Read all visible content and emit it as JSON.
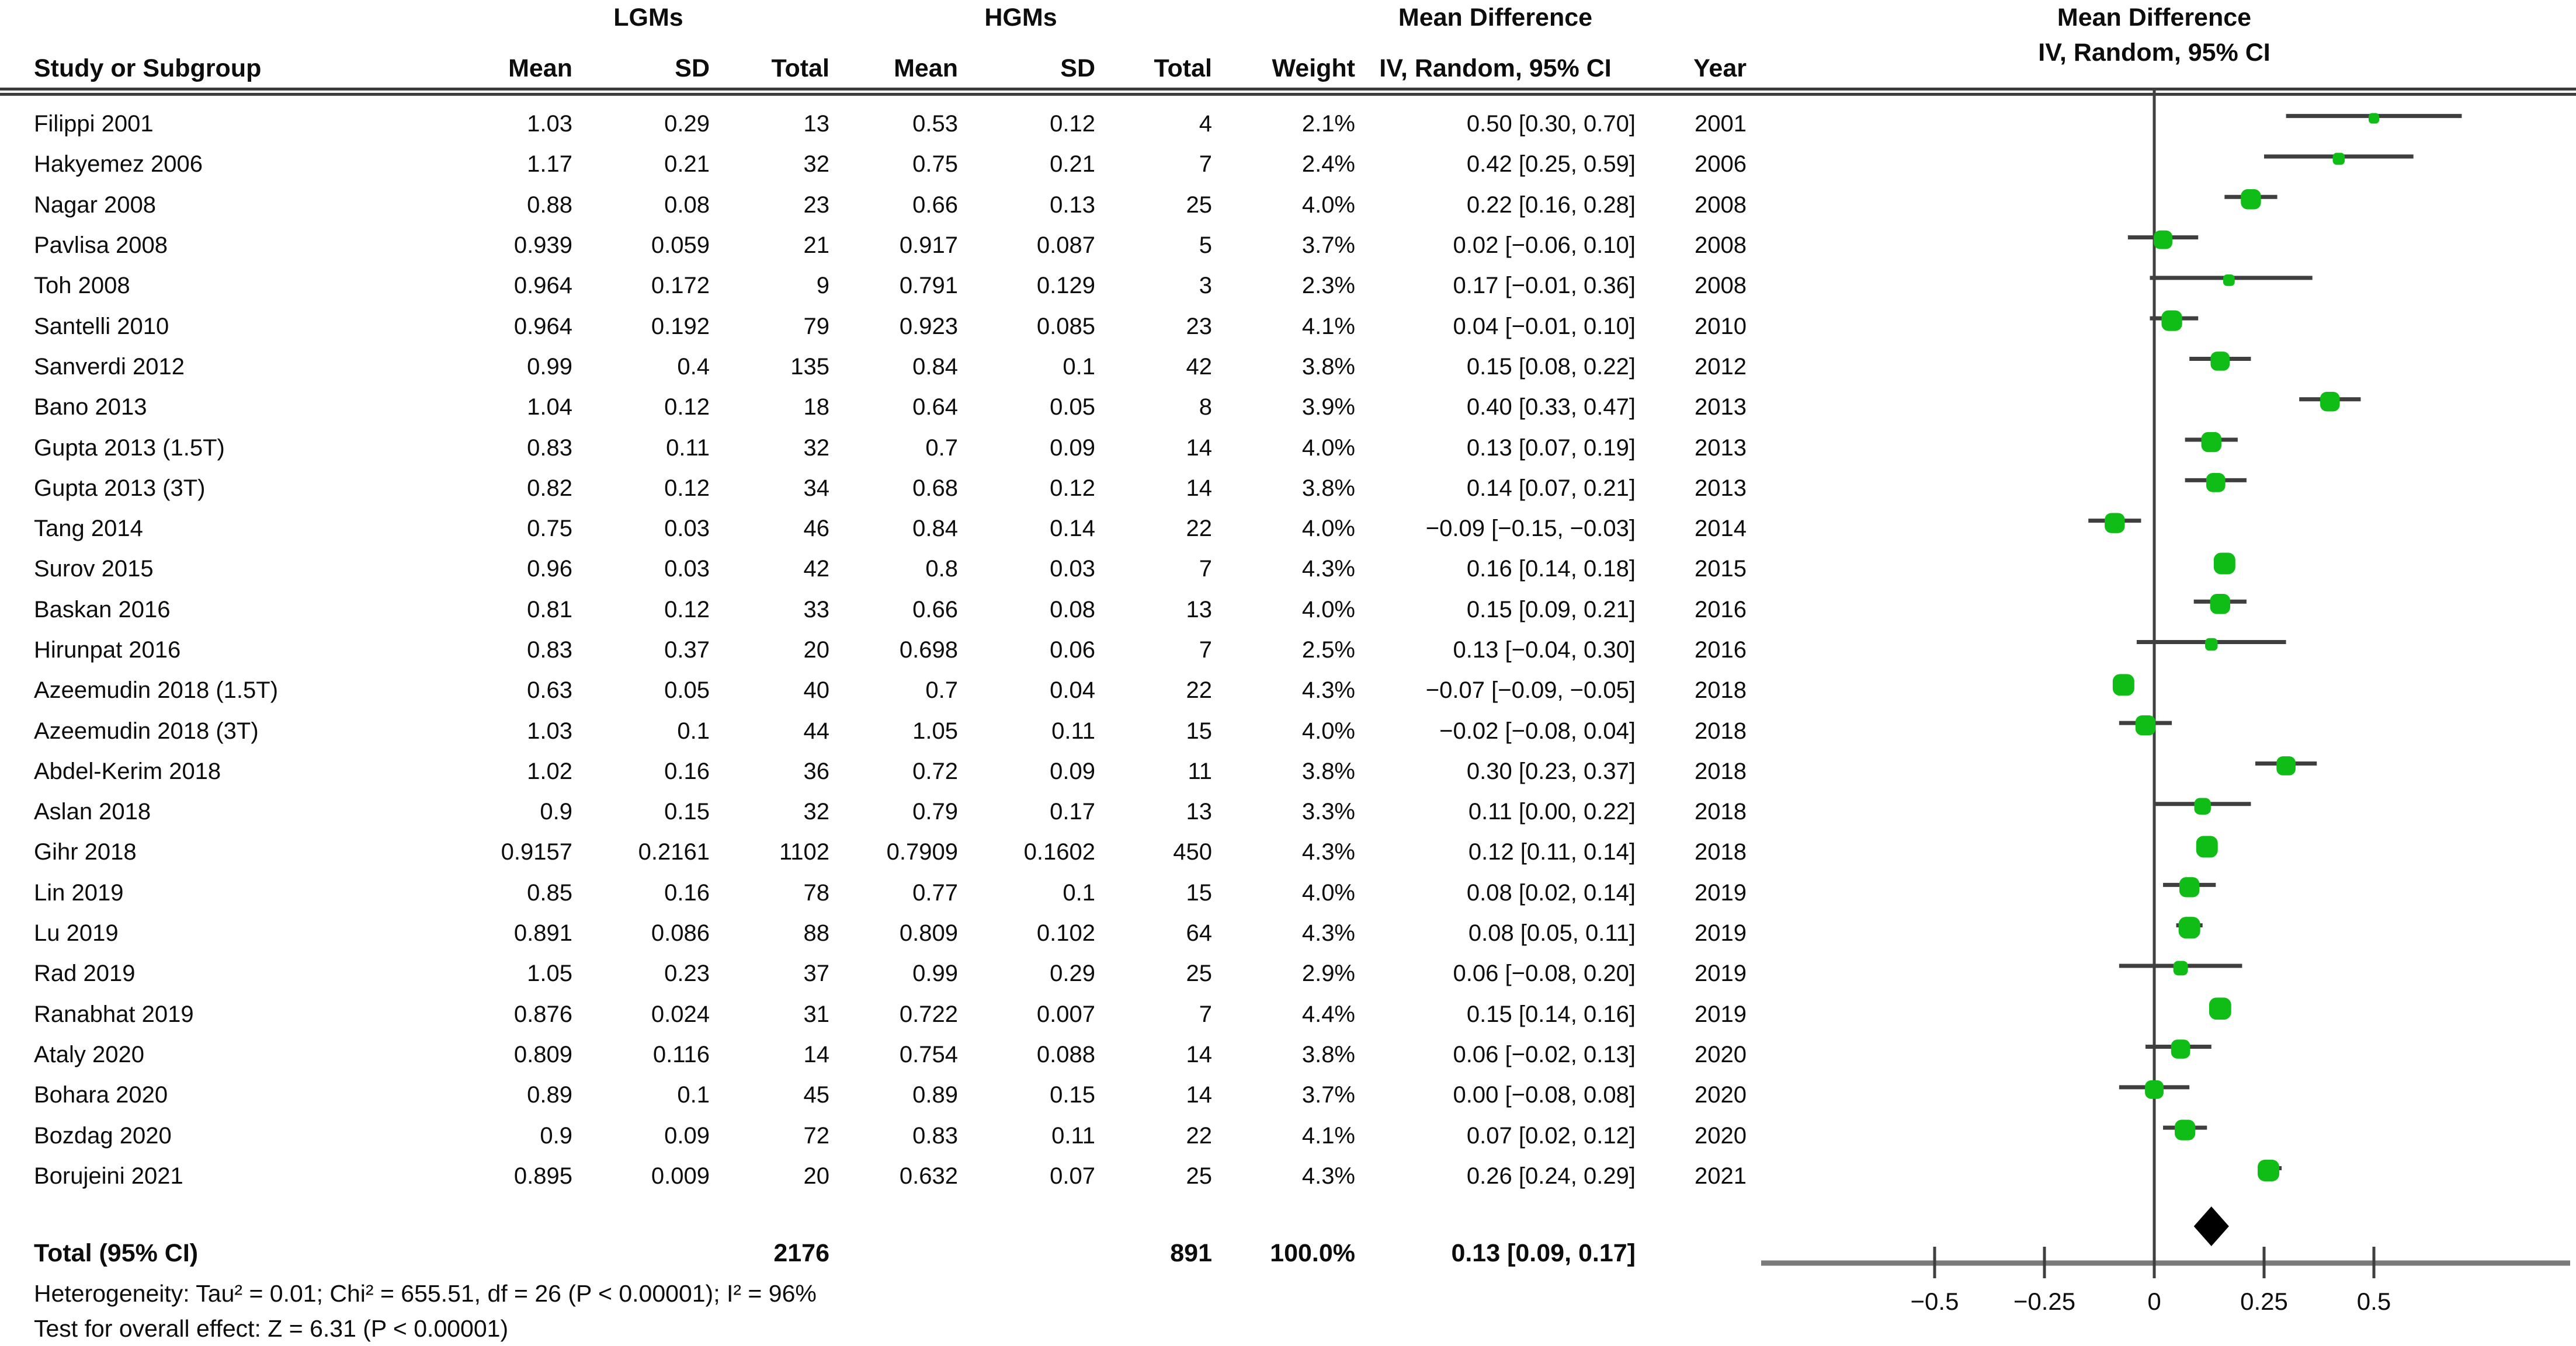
{
  "header": {
    "study_col": "Study or Subgroup",
    "group_lgm": "LGMs",
    "group_hgm": "HGMs",
    "mean": "Mean",
    "sd": "SD",
    "total": "Total",
    "weight": "Weight",
    "md_title": "Mean Difference",
    "md_subtitle": "IV, Random, 95% CI",
    "year": "Year",
    "plot_title": "Mean Difference",
    "plot_subtitle": "IV, Random, 95% CI"
  },
  "footer": {
    "total_label": "Total (95% CI)",
    "total_lgm_n": "2176",
    "total_hgm_n": "891",
    "total_weight": "100.0%",
    "total_ci": "0.13 [0.09, 0.17]",
    "heterogeneity": "Heterogeneity: Tau² = 0.01; Chi² = 655.51, df = 26 (P < 0.00001); I² = 96%",
    "overall_effect": "Test for overall effect: Z = 6.31 (P < 0.00001)"
  },
  "chart_data": {
    "type": "forest",
    "title": "Mean Difference",
    "model": "IV, Random, 95% CI",
    "xlabel": "",
    "x_ticks": [
      -0.5,
      -0.25,
      0,
      0.25,
      0.5
    ],
    "x_tick_labels": [
      "−0.5",
      "−0.25",
      "0",
      "0.25",
      "0.5"
    ],
    "x_range": [
      -0.9,
      0.95
    ],
    "marker_color": "#0fbd16",
    "ci_color": "#3f3f3f",
    "axis_color": "#7a7a7a",
    "diamond_color": "#000000",
    "studies": [
      {
        "name": "Filippi 2001",
        "m1": "1.03",
        "sd1": "0.29",
        "n1": "13",
        "m2": "0.53",
        "sd2": "0.12",
        "n2": "4",
        "wt": "2.1%",
        "ci": "0.50 [0.30, 0.70]",
        "year": "2001",
        "md": 0.5,
        "lo": 0.3,
        "hi": 0.7,
        "w": 2.1
      },
      {
        "name": "Hakyemez 2006",
        "m1": "1.17",
        "sd1": "0.21",
        "n1": "32",
        "m2": "0.75",
        "sd2": "0.21",
        "n2": "7",
        "wt": "2.4%",
        "ci": "0.42 [0.25, 0.59]",
        "year": "2006",
        "md": 0.42,
        "lo": 0.25,
        "hi": 0.59,
        "w": 2.4
      },
      {
        "name": "Nagar 2008",
        "m1": "0.88",
        "sd1": "0.08",
        "n1": "23",
        "m2": "0.66",
        "sd2": "0.13",
        "n2": "25",
        "wt": "4.0%",
        "ci": "0.22 [0.16, 0.28]",
        "year": "2008",
        "md": 0.22,
        "lo": 0.16,
        "hi": 0.28,
        "w": 4.0
      },
      {
        "name": "Pavlisa 2008",
        "m1": "0.939",
        "sd1": "0.059",
        "n1": "21",
        "m2": "0.917",
        "sd2": "0.087",
        "n2": "5",
        "wt": "3.7%",
        "ci": "0.02 [−0.06, 0.10]",
        "year": "2008",
        "md": 0.02,
        "lo": -0.06,
        "hi": 0.1,
        "w": 3.7
      },
      {
        "name": "Toh 2008",
        "m1": "0.964",
        "sd1": "0.172",
        "n1": "9",
        "m2": "0.791",
        "sd2": "0.129",
        "n2": "3",
        "wt": "2.3%",
        "ci": "0.17 [−0.01, 0.36]",
        "year": "2008",
        "md": 0.17,
        "lo": -0.01,
        "hi": 0.36,
        "w": 2.3
      },
      {
        "name": "Santelli 2010",
        "m1": "0.964",
        "sd1": "0.192",
        "n1": "79",
        "m2": "0.923",
        "sd2": "0.085",
        "n2": "23",
        "wt": "4.1%",
        "ci": "0.04 [−0.01, 0.10]",
        "year": "2010",
        "md": 0.04,
        "lo": -0.01,
        "hi": 0.1,
        "w": 4.1
      },
      {
        "name": "Sanverdi 2012",
        "m1": "0.99",
        "sd1": "0.4",
        "n1": "135",
        "m2": "0.84",
        "sd2": "0.1",
        "n2": "42",
        "wt": "3.8%",
        "ci": "0.15 [0.08, 0.22]",
        "year": "2012",
        "md": 0.15,
        "lo": 0.08,
        "hi": 0.22,
        "w": 3.8
      },
      {
        "name": "Bano 2013",
        "m1": "1.04",
        "sd1": "0.12",
        "n1": "18",
        "m2": "0.64",
        "sd2": "0.05",
        "n2": "8",
        "wt": "3.9%",
        "ci": "0.40 [0.33, 0.47]",
        "year": "2013",
        "md": 0.4,
        "lo": 0.33,
        "hi": 0.47,
        "w": 3.9
      },
      {
        "name": "Gupta 2013 (1.5T)",
        "m1": "0.83",
        "sd1": "0.11",
        "n1": "32",
        "m2": "0.7",
        "sd2": "0.09",
        "n2": "14",
        "wt": "4.0%",
        "ci": "0.13 [0.07, 0.19]",
        "year": "2013",
        "md": 0.13,
        "lo": 0.07,
        "hi": 0.19,
        "w": 4.0
      },
      {
        "name": "Gupta 2013 (3T)",
        "m1": "0.82",
        "sd1": "0.12",
        "n1": "34",
        "m2": "0.68",
        "sd2": "0.12",
        "n2": "14",
        "wt": "3.8%",
        "ci": "0.14 [0.07, 0.21]",
        "year": "2013",
        "md": 0.14,
        "lo": 0.07,
        "hi": 0.21,
        "w": 3.8
      },
      {
        "name": "Tang 2014",
        "m1": "0.75",
        "sd1": "0.03",
        "n1": "46",
        "m2": "0.84",
        "sd2": "0.14",
        "n2": "22",
        "wt": "4.0%",
        "ci": "−0.09 [−0.15, −0.03]",
        "year": "2014",
        "md": -0.09,
        "lo": -0.15,
        "hi": -0.03,
        "w": 4.0
      },
      {
        "name": "Surov 2015",
        "m1": "0.96",
        "sd1": "0.03",
        "n1": "42",
        "m2": "0.8",
        "sd2": "0.03",
        "n2": "7",
        "wt": "4.3%",
        "ci": "0.16 [0.14, 0.18]",
        "year": "2015",
        "md": 0.16,
        "lo": 0.14,
        "hi": 0.18,
        "w": 4.3
      },
      {
        "name": "Baskan 2016",
        "m1": "0.81",
        "sd1": "0.12",
        "n1": "33",
        "m2": "0.66",
        "sd2": "0.08",
        "n2": "13",
        "wt": "4.0%",
        "ci": "0.15 [0.09, 0.21]",
        "year": "2016",
        "md": 0.15,
        "lo": 0.09,
        "hi": 0.21,
        "w": 4.0
      },
      {
        "name": "Hirunpat 2016",
        "m1": "0.83",
        "sd1": "0.37",
        "n1": "20",
        "m2": "0.698",
        "sd2": "0.06",
        "n2": "7",
        "wt": "2.5%",
        "ci": "0.13 [−0.04, 0.30]",
        "year": "2016",
        "md": 0.13,
        "lo": -0.04,
        "hi": 0.3,
        "w": 2.5
      },
      {
        "name": "Azeemudin 2018 (1.5T)",
        "m1": "0.63",
        "sd1": "0.05",
        "n1": "40",
        "m2": "0.7",
        "sd2": "0.04",
        "n2": "22",
        "wt": "4.3%",
        "ci": "−0.07 [−0.09, −0.05]",
        "year": "2018",
        "md": -0.07,
        "lo": -0.09,
        "hi": -0.05,
        "w": 4.3
      },
      {
        "name": "Azeemudin 2018 (3T)",
        "m1": "1.03",
        "sd1": "0.1",
        "n1": "44",
        "m2": "1.05",
        "sd2": "0.11",
        "n2": "15",
        "wt": "4.0%",
        "ci": "−0.02 [−0.08, 0.04]",
        "year": "2018",
        "md": -0.02,
        "lo": -0.08,
        "hi": 0.04,
        "w": 4.0
      },
      {
        "name": "Abdel-Kerim 2018",
        "m1": "1.02",
        "sd1": "0.16",
        "n1": "36",
        "m2": "0.72",
        "sd2": "0.09",
        "n2": "11",
        "wt": "3.8%",
        "ci": "0.30 [0.23, 0.37]",
        "year": "2018",
        "md": 0.3,
        "lo": 0.23,
        "hi": 0.37,
        "w": 3.8
      },
      {
        "name": "Aslan 2018",
        "m1": "0.9",
        "sd1": "0.15",
        "n1": "32",
        "m2": "0.79",
        "sd2": "0.17",
        "n2": "13",
        "wt": "3.3%",
        "ci": "0.11 [0.00, 0.22]",
        "year": "2018",
        "md": 0.11,
        "lo": 0.0,
        "hi": 0.22,
        "w": 3.3
      },
      {
        "name": "Gihr 2018",
        "m1": "0.9157",
        "sd1": "0.2161",
        "n1": "1102",
        "m2": "0.7909",
        "sd2": "0.1602",
        "n2": "450",
        "wt": "4.3%",
        "ci": "0.12 [0.11, 0.14]",
        "year": "2018",
        "md": 0.12,
        "lo": 0.11,
        "hi": 0.14,
        "w": 4.3
      },
      {
        "name": "Lin 2019",
        "m1": "0.85",
        "sd1": "0.16",
        "n1": "78",
        "m2": "0.77",
        "sd2": "0.1",
        "n2": "15",
        "wt": "4.0%",
        "ci": "0.08 [0.02, 0.14]",
        "year": "2019",
        "md": 0.08,
        "lo": 0.02,
        "hi": 0.14,
        "w": 4.0
      },
      {
        "name": "Lu 2019",
        "m1": "0.891",
        "sd1": "0.086",
        "n1": "88",
        "m2": "0.809",
        "sd2": "0.102",
        "n2": "64",
        "wt": "4.3%",
        "ci": "0.08 [0.05, 0.11]",
        "year": "2019",
        "md": 0.08,
        "lo": 0.05,
        "hi": 0.11,
        "w": 4.3
      },
      {
        "name": "Rad 2019",
        "m1": "1.05",
        "sd1": "0.23",
        "n1": "37",
        "m2": "0.99",
        "sd2": "0.29",
        "n2": "25",
        "wt": "2.9%",
        "ci": "0.06 [−0.08, 0.20]",
        "year": "2019",
        "md": 0.06,
        "lo": -0.08,
        "hi": 0.2,
        "w": 2.9
      },
      {
        "name": "Ranabhat 2019",
        "m1": "0.876",
        "sd1": "0.024",
        "n1": "31",
        "m2": "0.722",
        "sd2": "0.007",
        "n2": "7",
        "wt": "4.4%",
        "ci": "0.15 [0.14, 0.16]",
        "year": "2019",
        "md": 0.15,
        "lo": 0.14,
        "hi": 0.16,
        "w": 4.4
      },
      {
        "name": "Ataly 2020",
        "m1": "0.809",
        "sd1": "0.116",
        "n1": "14",
        "m2": "0.754",
        "sd2": "0.088",
        "n2": "14",
        "wt": "3.8%",
        "ci": "0.06 [−0.02, 0.13]",
        "year": "2020",
        "md": 0.06,
        "lo": -0.02,
        "hi": 0.13,
        "w": 3.8
      },
      {
        "name": "Bohara 2020",
        "m1": "0.89",
        "sd1": "0.1",
        "n1": "45",
        "m2": "0.89",
        "sd2": "0.15",
        "n2": "14",
        "wt": "3.7%",
        "ci": "0.00 [−0.08, 0.08]",
        "year": "2020",
        "md": 0.0,
        "lo": -0.08,
        "hi": 0.08,
        "w": 3.7
      },
      {
        "name": "Bozdag 2020",
        "m1": "0.9",
        "sd1": "0.09",
        "n1": "72",
        "m2": "0.83",
        "sd2": "0.11",
        "n2": "22",
        "wt": "4.1%",
        "ci": "0.07 [0.02, 0.12]",
        "year": "2020",
        "md": 0.07,
        "lo": 0.02,
        "hi": 0.12,
        "w": 4.1
      },
      {
        "name": "Borujeini 2021",
        "m1": "0.895",
        "sd1": "0.009",
        "n1": "20",
        "m2": "0.632",
        "sd2": "0.07",
        "n2": "25",
        "wt": "4.3%",
        "ci": "0.26 [0.24, 0.29]",
        "year": "2021",
        "md": 0.26,
        "lo": 0.24,
        "hi": 0.29,
        "w": 4.3
      }
    ],
    "total": {
      "md": 0.13,
      "lo": 0.09,
      "hi": 0.17,
      "label": "Total (95% CI)",
      "ci_text": "0.13 [0.09, 0.17]"
    }
  }
}
